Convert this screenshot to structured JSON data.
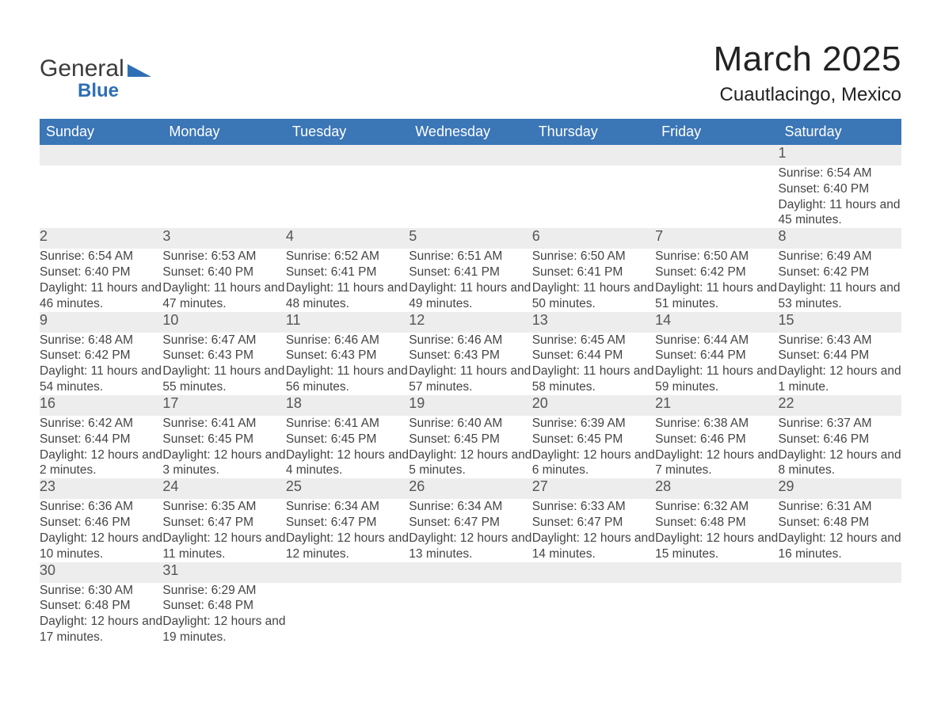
{
  "brand": {
    "name1": "General",
    "name2": "Blue"
  },
  "title": "March 2025",
  "location": "Cuautlacingo, Mexico",
  "colors": {
    "header_bg": "#3b76b6",
    "header_text": "#ffffff",
    "daynum_bg": "#ededed",
    "row_border": "#3b76b6",
    "body_text": "#444444",
    "title_text": "#222222"
  },
  "fonts": {
    "title_size_pt": 33,
    "location_size_pt": 18,
    "dayheader_size_pt": 14,
    "daynum_size_pt": 14,
    "detail_size_pt": 12
  },
  "day_headers": [
    "Sunday",
    "Monday",
    "Tuesday",
    "Wednesday",
    "Thursday",
    "Friday",
    "Saturday"
  ],
  "weeks": [
    [
      null,
      null,
      null,
      null,
      null,
      null,
      {
        "n": "1",
        "sunrise": "Sunrise: 6:54 AM",
        "sunset": "Sunset: 6:40 PM",
        "daylight": "Daylight: 11 hours and 45 minutes."
      }
    ],
    [
      {
        "n": "2",
        "sunrise": "Sunrise: 6:54 AM",
        "sunset": "Sunset: 6:40 PM",
        "daylight": "Daylight: 11 hours and 46 minutes."
      },
      {
        "n": "3",
        "sunrise": "Sunrise: 6:53 AM",
        "sunset": "Sunset: 6:40 PM",
        "daylight": "Daylight: 11 hours and 47 minutes."
      },
      {
        "n": "4",
        "sunrise": "Sunrise: 6:52 AM",
        "sunset": "Sunset: 6:41 PM",
        "daylight": "Daylight: 11 hours and 48 minutes."
      },
      {
        "n": "5",
        "sunrise": "Sunrise: 6:51 AM",
        "sunset": "Sunset: 6:41 PM",
        "daylight": "Daylight: 11 hours and 49 minutes."
      },
      {
        "n": "6",
        "sunrise": "Sunrise: 6:50 AM",
        "sunset": "Sunset: 6:41 PM",
        "daylight": "Daylight: 11 hours and 50 minutes."
      },
      {
        "n": "7",
        "sunrise": "Sunrise: 6:50 AM",
        "sunset": "Sunset: 6:42 PM",
        "daylight": "Daylight: 11 hours and 51 minutes."
      },
      {
        "n": "8",
        "sunrise": "Sunrise: 6:49 AM",
        "sunset": "Sunset: 6:42 PM",
        "daylight": "Daylight: 11 hours and 53 minutes."
      }
    ],
    [
      {
        "n": "9",
        "sunrise": "Sunrise: 6:48 AM",
        "sunset": "Sunset: 6:42 PM",
        "daylight": "Daylight: 11 hours and 54 minutes."
      },
      {
        "n": "10",
        "sunrise": "Sunrise: 6:47 AM",
        "sunset": "Sunset: 6:43 PM",
        "daylight": "Daylight: 11 hours and 55 minutes."
      },
      {
        "n": "11",
        "sunrise": "Sunrise: 6:46 AM",
        "sunset": "Sunset: 6:43 PM",
        "daylight": "Daylight: 11 hours and 56 minutes."
      },
      {
        "n": "12",
        "sunrise": "Sunrise: 6:46 AM",
        "sunset": "Sunset: 6:43 PM",
        "daylight": "Daylight: 11 hours and 57 minutes."
      },
      {
        "n": "13",
        "sunrise": "Sunrise: 6:45 AM",
        "sunset": "Sunset: 6:44 PM",
        "daylight": "Daylight: 11 hours and 58 minutes."
      },
      {
        "n": "14",
        "sunrise": "Sunrise: 6:44 AM",
        "sunset": "Sunset: 6:44 PM",
        "daylight": "Daylight: 11 hours and 59 minutes."
      },
      {
        "n": "15",
        "sunrise": "Sunrise: 6:43 AM",
        "sunset": "Sunset: 6:44 PM",
        "daylight": "Daylight: 12 hours and 1 minute."
      }
    ],
    [
      {
        "n": "16",
        "sunrise": "Sunrise: 6:42 AM",
        "sunset": "Sunset: 6:44 PM",
        "daylight": "Daylight: 12 hours and 2 minutes."
      },
      {
        "n": "17",
        "sunrise": "Sunrise: 6:41 AM",
        "sunset": "Sunset: 6:45 PM",
        "daylight": "Daylight: 12 hours and 3 minutes."
      },
      {
        "n": "18",
        "sunrise": "Sunrise: 6:41 AM",
        "sunset": "Sunset: 6:45 PM",
        "daylight": "Daylight: 12 hours and 4 minutes."
      },
      {
        "n": "19",
        "sunrise": "Sunrise: 6:40 AM",
        "sunset": "Sunset: 6:45 PM",
        "daylight": "Daylight: 12 hours and 5 minutes."
      },
      {
        "n": "20",
        "sunrise": "Sunrise: 6:39 AM",
        "sunset": "Sunset: 6:45 PM",
        "daylight": "Daylight: 12 hours and 6 minutes."
      },
      {
        "n": "21",
        "sunrise": "Sunrise: 6:38 AM",
        "sunset": "Sunset: 6:46 PM",
        "daylight": "Daylight: 12 hours and 7 minutes."
      },
      {
        "n": "22",
        "sunrise": "Sunrise: 6:37 AM",
        "sunset": "Sunset: 6:46 PM",
        "daylight": "Daylight: 12 hours and 8 minutes."
      }
    ],
    [
      {
        "n": "23",
        "sunrise": "Sunrise: 6:36 AM",
        "sunset": "Sunset: 6:46 PM",
        "daylight": "Daylight: 12 hours and 10 minutes."
      },
      {
        "n": "24",
        "sunrise": "Sunrise: 6:35 AM",
        "sunset": "Sunset: 6:47 PM",
        "daylight": "Daylight: 12 hours and 11 minutes."
      },
      {
        "n": "25",
        "sunrise": "Sunrise: 6:34 AM",
        "sunset": "Sunset: 6:47 PM",
        "daylight": "Daylight: 12 hours and 12 minutes."
      },
      {
        "n": "26",
        "sunrise": "Sunrise: 6:34 AM",
        "sunset": "Sunset: 6:47 PM",
        "daylight": "Daylight: 12 hours and 13 minutes."
      },
      {
        "n": "27",
        "sunrise": "Sunrise: 6:33 AM",
        "sunset": "Sunset: 6:47 PM",
        "daylight": "Daylight: 12 hours and 14 minutes."
      },
      {
        "n": "28",
        "sunrise": "Sunrise: 6:32 AM",
        "sunset": "Sunset: 6:48 PM",
        "daylight": "Daylight: 12 hours and 15 minutes."
      },
      {
        "n": "29",
        "sunrise": "Sunrise: 6:31 AM",
        "sunset": "Sunset: 6:48 PM",
        "daylight": "Daylight: 12 hours and 16 minutes."
      }
    ],
    [
      {
        "n": "30",
        "sunrise": "Sunrise: 6:30 AM",
        "sunset": "Sunset: 6:48 PM",
        "daylight": "Daylight: 12 hours and 17 minutes."
      },
      {
        "n": "31",
        "sunrise": "Sunrise: 6:29 AM",
        "sunset": "Sunset: 6:48 PM",
        "daylight": "Daylight: 12 hours and 19 minutes."
      },
      null,
      null,
      null,
      null,
      null
    ]
  ]
}
